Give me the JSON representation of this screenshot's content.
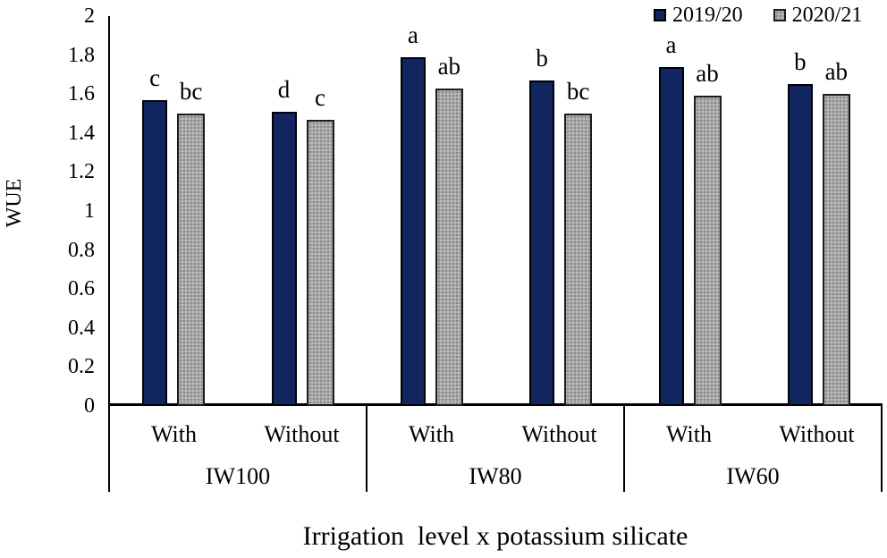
{
  "chart_data": {
    "type": "bar",
    "title": "",
    "ylabel": "WUE",
    "xlabel": "Irrigation  level x potassium silicate",
    "ylim": [
      0,
      2
    ],
    "yticks": [
      0,
      0.2,
      0.4,
      0.6,
      0.8,
      1,
      1.2,
      1.4,
      1.6,
      1.8,
      2
    ],
    "ytick_labels": [
      "0",
      "0.2",
      "0.4",
      "0.6",
      "0.8",
      "1",
      "1.2",
      "1.4",
      "1.6",
      "1.8",
      "2"
    ],
    "grid": false,
    "legend_position": "top-right",
    "groups": [
      {
        "label": "IW100",
        "subcategories": [
          "With",
          "Without"
        ]
      },
      {
        "label": "IW80",
        "subcategories": [
          "With",
          "Without"
        ]
      },
      {
        "label": "IW60",
        "subcategories": [
          "With",
          "Without"
        ]
      }
    ],
    "series": [
      {
        "name": "2019/20",
        "color": "#112560",
        "pattern": "solid",
        "values": [
          1.57,
          1.51,
          1.79,
          1.67,
          1.74,
          1.65
        ],
        "sig_letters": [
          "c",
          "d",
          "a",
          "b",
          "a",
          "b"
        ]
      },
      {
        "name": "2020/21",
        "color": "#a6a6a6",
        "pattern": "stipple",
        "values": [
          1.5,
          1.47,
          1.63,
          1.5,
          1.59,
          1.6
        ],
        "sig_letters": [
          "bc",
          "c",
          "ab",
          "bc",
          "ab",
          "ab"
        ]
      }
    ]
  }
}
